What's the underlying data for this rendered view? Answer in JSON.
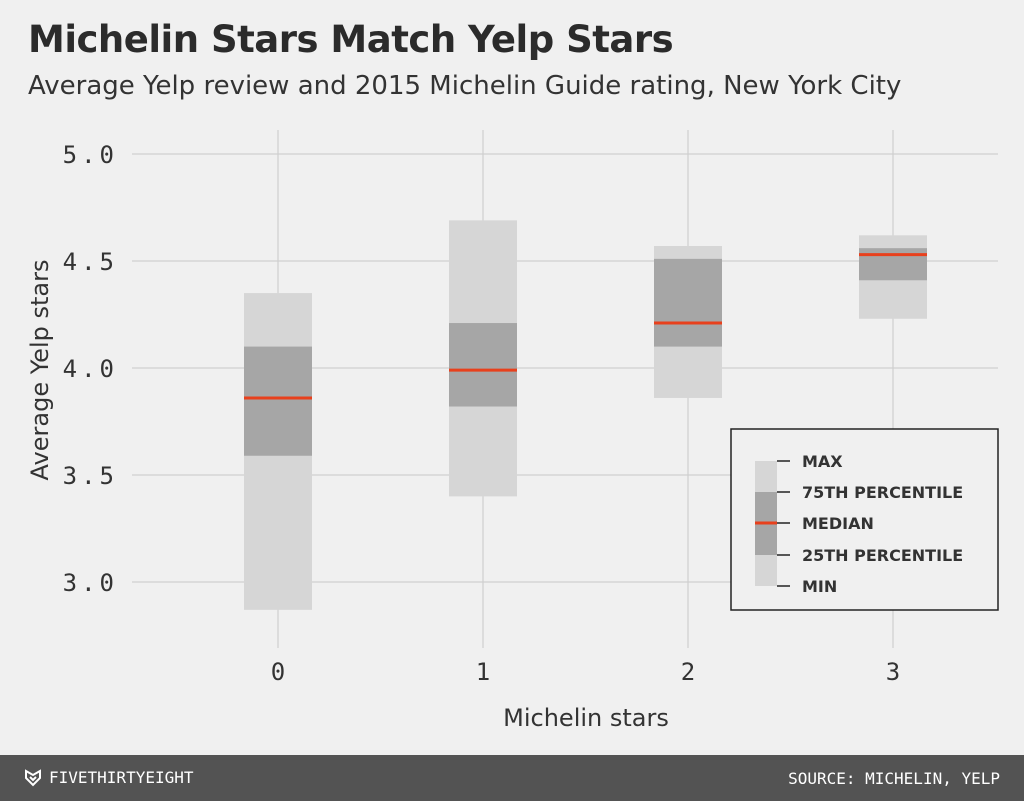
{
  "title": "Michelin Stars Match Yelp Stars",
  "subtitle": "Average Yelp review and 2015 Michelin Guide rating, New York City",
  "footer": {
    "brand": "FIVETHIRTYEIGHT",
    "brand_icon": "fivethirtyeight-logo-icon",
    "source": "SOURCE: MICHELIN, YELP"
  },
  "colors": {
    "background": "#f0f0f0",
    "grid": "#cfcfcf",
    "range_box": "#d6d6d6",
    "iqr_box": "#a6a6a6",
    "median": "#e8401c",
    "footer": "#535353"
  },
  "chart_data": {
    "type": "boxplot",
    "xlabel": "Michelin stars",
    "ylabel": "Average Yelp stars",
    "categories": [
      "0",
      "1",
      "2",
      "3"
    ],
    "ylim": [
      2.8,
      5.05
    ],
    "yticks": [
      3.0,
      3.5,
      4.0,
      4.5,
      5.0
    ],
    "ytick_labels": [
      "3.0",
      "3.5",
      "4.0",
      "4.5",
      "5.0"
    ],
    "grid": true,
    "series": [
      {
        "category": "0",
        "min": 2.87,
        "q1": 3.59,
        "median": 3.86,
        "q3": 4.1,
        "max": 4.35
      },
      {
        "category": "1",
        "min": 3.4,
        "q1": 3.82,
        "median": 3.99,
        "q3": 4.21,
        "max": 4.69
      },
      {
        "category": "2",
        "min": 3.86,
        "q1": 4.1,
        "median": 4.21,
        "q3": 4.51,
        "max": 4.57
      },
      {
        "category": "3",
        "min": 4.23,
        "q1": 4.41,
        "median": 4.53,
        "q3": 4.56,
        "max": 4.62
      }
    ],
    "legend": {
      "placement": "bottom-right",
      "items": [
        "MAX",
        "75TH PERCENTILE",
        "MEDIAN",
        "25TH PERCENTILE",
        "MIN"
      ]
    }
  }
}
